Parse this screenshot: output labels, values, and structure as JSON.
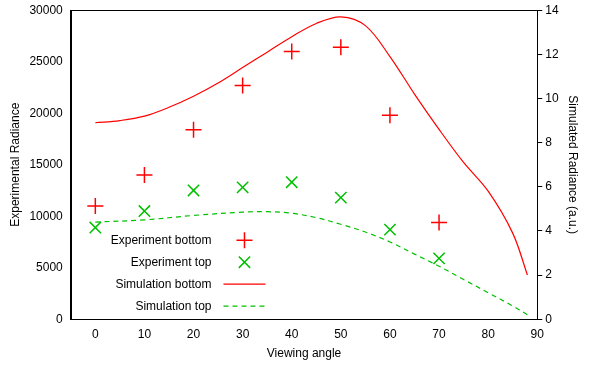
{
  "chart_data": {
    "type": "line",
    "xlabel": "Viewing angle",
    "ylabel": "Experimental Radiance",
    "y2label": "Simulated Radiance (a.u.)",
    "xlim": [
      -5,
      90
    ],
    "xticks": [
      0,
      10,
      20,
      30,
      40,
      50,
      60,
      70,
      80,
      90
    ],
    "ylim": [
      0,
      30000
    ],
    "yticks": [
      0,
      5000,
      10000,
      15000,
      20000,
      25000,
      30000
    ],
    "y2lim": [
      0,
      14
    ],
    "y2ticks": [
      0,
      2,
      4,
      6,
      8,
      10,
      12,
      14
    ],
    "grid": false,
    "legend": "lower left",
    "series": [
      {
        "name": "Experiment bottom",
        "type": "scatter",
        "marker": "plus",
        "color": "#ff0000",
        "x": [
          0,
          10,
          20,
          30,
          40,
          50,
          60,
          70
        ],
        "values": [
          11000,
          14000,
          18400,
          22700,
          26000,
          26400,
          19800,
          9400
        ]
      },
      {
        "name": "Experiment top",
        "type": "scatter",
        "marker": "x",
        "color": "#00c000",
        "x": [
          0,
          10,
          20,
          30,
          40,
          50,
          60,
          70
        ],
        "values": [
          8900,
          10500,
          12500,
          12800,
          13300,
          11800,
          8700,
          5900
        ]
      },
      {
        "name": "Simulation bottom",
        "type": "line",
        "line_style": "solid",
        "color": "#ff0000",
        "axis": "y2",
        "x": [
          0,
          5,
          10,
          15,
          20,
          25,
          30,
          35,
          40,
          45,
          50,
          55,
          60,
          65,
          70,
          75,
          80,
          85,
          88
        ],
        "values": [
          8.9,
          9.0,
          9.2,
          9.6,
          10.1,
          10.7,
          11.4,
          12.1,
          12.8,
          13.4,
          13.7,
          13.3,
          11.9,
          10.2,
          8.6,
          7.1,
          5.8,
          3.9,
          2.0
        ]
      },
      {
        "name": "Simulation top",
        "type": "line",
        "line_style": "dashed",
        "color": "#00c000",
        "axis": "y2",
        "x": [
          0,
          10,
          20,
          30,
          35,
          40,
          45,
          50,
          55,
          60,
          65,
          70,
          75,
          80,
          85,
          88
        ],
        "values": [
          4.4,
          4.5,
          4.7,
          4.85,
          4.87,
          4.8,
          4.6,
          4.3,
          3.95,
          3.5,
          2.95,
          2.4,
          1.8,
          1.2,
          0.6,
          0.2
        ]
      }
    ]
  }
}
